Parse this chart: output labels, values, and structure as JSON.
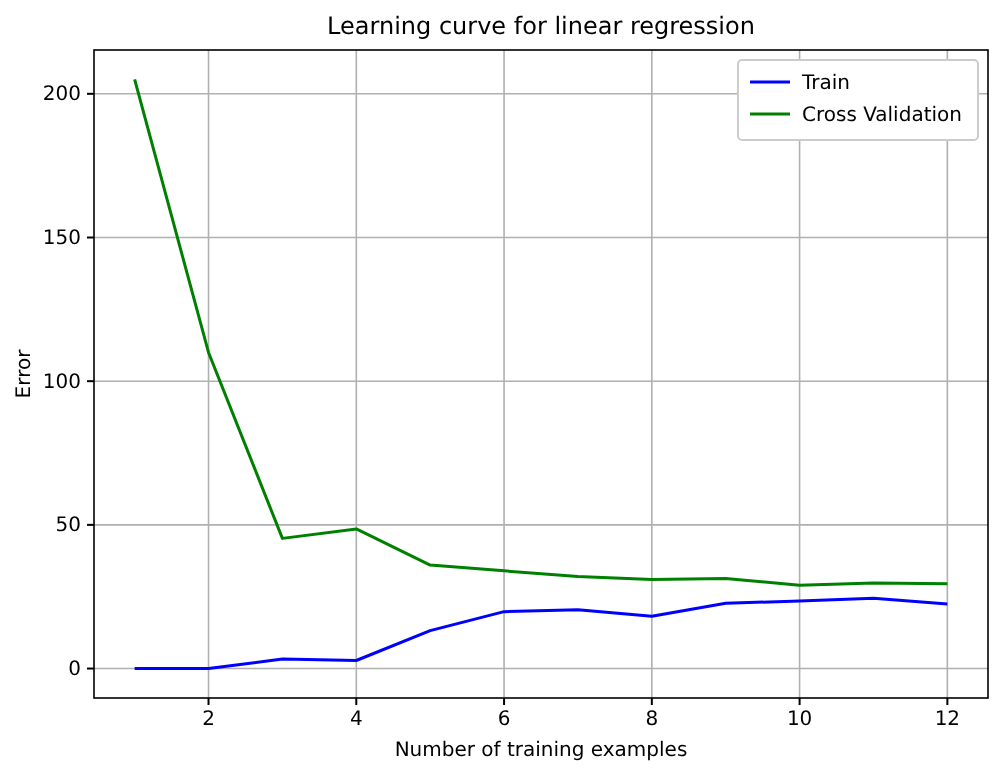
{
  "chart_data": {
    "type": "line",
    "title": "Learning curve for linear regression",
    "xlabel": "Number of training examples",
    "ylabel": "Error",
    "x": [
      1,
      2,
      3,
      4,
      5,
      6,
      7,
      8,
      9,
      10,
      11,
      12
    ],
    "series": [
      {
        "name": "Train",
        "color": "#0000ff",
        "values": [
          0,
          0,
          3.3,
          2.8,
          13.2,
          19.8,
          20.5,
          18.2,
          22.7,
          23.5,
          24.5,
          22.5
        ]
      },
      {
        "name": "Cross Validation",
        "color": "#008000",
        "values": [
          205,
          110,
          45.3,
          48.6,
          36,
          34,
          32,
          31,
          31.3,
          29,
          29.8,
          29.5
        ]
      }
    ],
    "xlim": [
      0.45,
      12.55
    ],
    "xticks": [
      2,
      4,
      6,
      8,
      10,
      12
    ],
    "ylim": [
      -10.25,
      215.25
    ],
    "yticks": [
      0,
      50,
      100,
      150,
      200
    ],
    "grid": true,
    "legend": "top right",
    "line_style": "solid",
    "marker": "none"
  }
}
